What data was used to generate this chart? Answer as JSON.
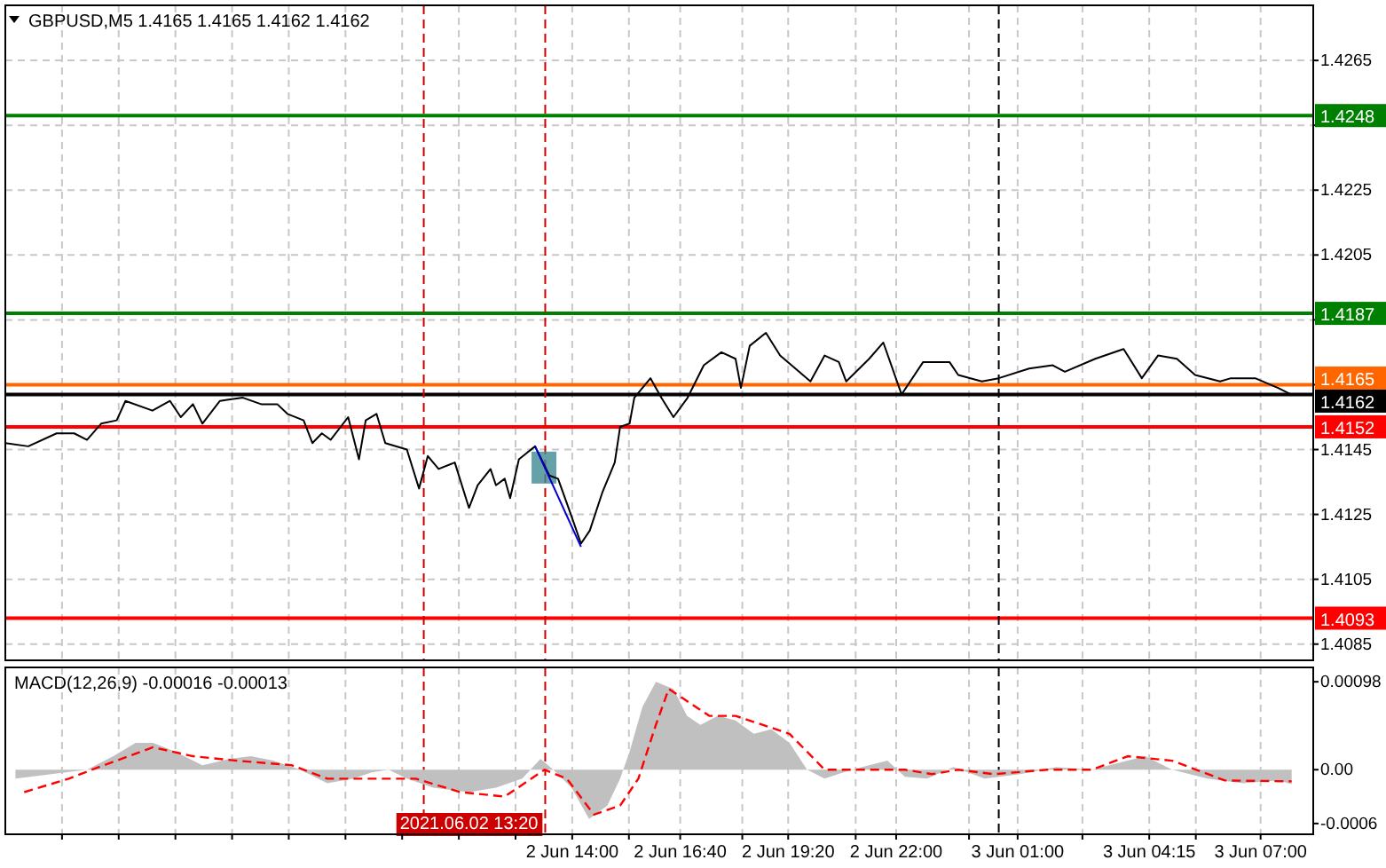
{
  "chart_data": [
    {
      "type": "line",
      "title": "GBPUSD,M5 1.4165 1.4165 1.4162 1.4162",
      "xlim": [
        "2021-06-02T00:00",
        "2021-06-03T08:18"
      ],
      "ylim": [
        1.408,
        1.4282
      ],
      "xticks": [
        {
          "value": "2021-06-02T01:24",
          "label": null
        },
        {
          "value": "2021-06-02T02:48",
          "label": null
        },
        {
          "value": "2021-06-02T04:12",
          "label": null
        },
        {
          "value": "2021-06-02T05:36",
          "label": null
        },
        {
          "value": "2021-06-02T07:00",
          "label": null
        },
        {
          "value": "2021-06-02T08:24",
          "label": null
        },
        {
          "value": "2021-06-02T09:48",
          "label": null
        },
        {
          "value": "2021-06-02T11:12",
          "label": null
        },
        {
          "value": "2021-06-02T12:36",
          "label": null
        },
        {
          "value": "2021-06-02T14:00",
          "label": null
        },
        {
          "value": "2021-06-02T15:24",
          "label": null
        },
        {
          "value": "2021-06-02T16:40",
          "label": null
        },
        {
          "value": "2021-06-02T18:12",
          "label": null
        },
        {
          "value": "2021-06-02T19:20",
          "label": null
        },
        {
          "value": "2021-06-02T21:00",
          "label": null
        },
        {
          "value": "2021-06-02T22:00",
          "label": null
        },
        {
          "value": "2021-06-02T23:48",
          "label": null
        },
        {
          "value": "2021-06-03T01:00",
          "label": null
        },
        {
          "value": "2021-06-03T02:36",
          "label": null
        },
        {
          "value": "2021-06-03T04:15",
          "label": null
        },
        {
          "value": "2021-06-03T05:24",
          "label": null
        },
        {
          "value": "2021-06-03T07:00",
          "label": null
        }
      ],
      "yticks": [
        1.4265,
        {
          "value": 1.4245,
          "label": null
        },
        1.4225,
        1.4205,
        {
          "value": 1.4185,
          "label": null
        },
        {
          "value": 1.4165,
          "label": null
        },
        1.4145,
        1.4125,
        1.4105,
        1.4085
      ],
      "grid": true,
      "tick_labels": "y",
      "series": [
        {
          "color": "#000000",
          "x": [
            "2021-06-02T00:00",
            "2021-06-02T00:34",
            "2021-06-02T01:16",
            "2021-06-02T01:42",
            "2021-06-02T02:01",
            "2021-06-02T02:22",
            "2021-06-02T02:45",
            "2021-06-02T02:58",
            "2021-06-02T03:38",
            "2021-06-02T04:04",
            "2021-06-02T04:20",
            "2021-06-02T04:38",
            "2021-06-02T04:52",
            "2021-06-02T05:18",
            "2021-06-02T05:52",
            "2021-06-02T06:19",
            "2021-06-02T06:43",
            "2021-06-02T06:58",
            "2021-06-02T07:22",
            "2021-06-02T07:35",
            "2021-06-02T07:49",
            "2021-06-02T08:02",
            "2021-06-02T08:28",
            "2021-06-02T08:44",
            "2021-06-02T08:54",
            "2021-06-02T09:10",
            "2021-06-02T09:23",
            "2021-06-02T09:55",
            "2021-06-02T10:13",
            "2021-06-02T10:26",
            "2021-06-02T10:42",
            "2021-06-02T11:06",
            "2021-06-02T11:27",
            "2021-06-02T11:40",
            "2021-06-02T11:59",
            "2021-06-02T12:07",
            "2021-06-02T12:20",
            "2021-06-02T12:28",
            "2021-06-02T12:41",
            "2021-06-02T13:05",
            "2021-06-02T13:26",
            "2021-06-02T13:39",
            "2021-06-02T13:58",
            "2021-06-02T14:13",
            "2021-06-02T14:26",
            "2021-06-02T14:45",
            "2021-06-02T15:03",
            "2021-06-02T15:11",
            "2021-06-02T15:25",
            "2021-06-02T15:32",
            "2021-06-02T15:56",
            "2021-06-02T16:12",
            "2021-06-02T16:30",
            "2021-06-02T16:51",
            "2021-06-02T17:15",
            "2021-06-02T17:41",
            "2021-06-02T18:02",
            "2021-06-02T18:10",
            "2021-06-02T18:23",
            "2021-06-02T18:47",
            "2021-06-02T19:08",
            "2021-06-02T19:53",
            "2021-06-02T20:14",
            "2021-06-02T20:35",
            "2021-06-02T20:46",
            "2021-06-02T21:20",
            "2021-06-02T21:41",
            "2021-06-02T22:08",
            "2021-06-02T22:40",
            "2021-06-02T23:19",
            "2021-06-02T23:32",
            "2021-06-03T00:07",
            "2021-06-03T00:32",
            "2021-06-03T01:17",
            "2021-06-03T01:52",
            "2021-06-03T02:10",
            "2021-06-03T02:55",
            "2021-06-03T03:37",
            "2021-06-03T04:04",
            "2021-06-03T04:28",
            "2021-06-03T04:56",
            "2021-06-03T05:23",
            "2021-06-03T06:00",
            "2021-06-03T06:16",
            "2021-06-03T06:52",
            "2021-06-03T07:26",
            "2021-06-03T07:45"
          ],
          "values": [
            1.4147,
            1.4146,
            1.415,
            1.415,
            1.4148,
            1.4153,
            1.4154,
            1.416,
            1.4157,
            1.416,
            1.4155,
            1.4159,
            1.4153,
            1.416,
            1.4161,
            1.4159,
            1.4159,
            1.4156,
            1.4154,
            1.4147,
            1.415,
            1.4148,
            1.4155,
            1.4142,
            1.4154,
            1.4156,
            1.4147,
            1.4145,
            1.4133,
            1.4143,
            1.4139,
            1.4141,
            1.4127,
            1.4134,
            1.4139,
            1.4134,
            1.4136,
            1.413,
            1.4142,
            1.4146,
            1.4137,
            1.4136,
            1.4125,
            1.4116,
            1.412,
            1.4132,
            1.4141,
            1.4152,
            1.4153,
            1.4161,
            1.4167,
            1.4161,
            1.4155,
            1.4161,
            1.4171,
            1.4175,
            1.4173,
            1.4164,
            1.4177,
            1.4181,
            1.4174,
            1.4166,
            1.4174,
            1.4172,
            1.4166,
            1.4173,
            1.4178,
            1.4162,
            1.4172,
            1.4172,
            1.4168,
            1.4166,
            1.4167,
            1.417,
            1.4171,
            1.4169,
            1.4173,
            1.4176,
            1.4167,
            1.4174,
            1.4173,
            1.4168,
            1.4166,
            1.4167,
            1.4167,
            1.4164,
            1.4162
          ]
        },
        {
          "color": "#0000cc",
          "x": [
            "2021-06-02T13:05",
            "2021-06-02T14:13"
          ],
          "values": [
            1.4146,
            1.4115
          ]
        }
      ],
      "ref_lines": [
        {
          "axis": "y",
          "value": 1.4248,
          "label": "1.4248",
          "color": "#008000"
        },
        {
          "axis": "y",
          "value": 1.4187,
          "label": "1.4187",
          "color": "#008000"
        },
        {
          "axis": "y",
          "value": 1.4165,
          "label": "1.4165",
          "color": "#ff6600"
        },
        {
          "axis": "y",
          "value": 1.4162,
          "label": "1.4162",
          "color": "#000000"
        },
        {
          "axis": "y",
          "value": 1.4152,
          "label": "1.4152",
          "color": "#ff0000"
        },
        {
          "axis": "y",
          "value": 1.4093,
          "label": "1.4093",
          "color": "#ff0000"
        },
        {
          "axis": "x",
          "value": "2021-06-02T10:20",
          "color": "#cc0000",
          "line_style": "dashed"
        },
        {
          "axis": "x",
          "value": "2021-06-02T13:20",
          "color": "#cc0000",
          "line_style": "dashed"
        },
        {
          "axis": "x",
          "value": "2021-06-03T00:32",
          "color": "#000000",
          "line_style": "dashed"
        }
      ]
    },
    {
      "type": "line",
      "title": "MACD(12,26,9) -0.00016 -0.00013",
      "xlim": [
        "2021-06-02T00:00",
        "2021-06-03T08:18"
      ],
      "ylim": [
        -0.00072,
        0.00114
      ],
      "xticks": [
        {
          "value": "2021-06-02T01:24",
          "label": null
        },
        {
          "value": "2021-06-02T02:48",
          "label": null
        },
        {
          "value": "2021-06-02T04:12",
          "label": null
        },
        {
          "value": "2021-06-02T05:36",
          "label": null
        },
        {
          "value": "2021-06-02T07:00",
          "label": null
        },
        {
          "value": "2021-06-02T08:24",
          "label": null
        },
        {
          "value": "2021-06-02T09:48",
          "label": null
        },
        {
          "value": "2021-06-02T11:12",
          "label": null
        },
        {
          "value": "2021-06-02T12:36",
          "label": null
        },
        {
          "value": "2021-06-02T14:00",
          "label": "2 Jun 14:00"
        },
        {
          "value": "2021-06-02T15:24",
          "label": null
        },
        {
          "value": "2021-06-02T16:40",
          "label": "2 Jun 16:40"
        },
        {
          "value": "2021-06-02T18:12",
          "label": null
        },
        {
          "value": "2021-06-02T19:20",
          "label": "2 Jun 19:20"
        },
        {
          "value": "2021-06-02T21:00",
          "label": null
        },
        {
          "value": "2021-06-02T22:00",
          "label": "2 Jun 22:00"
        },
        {
          "value": "2021-06-02T23:48",
          "label": null
        },
        {
          "value": "2021-06-03T01:00",
          "label": "3 Jun 01:00"
        },
        {
          "value": "2021-06-03T02:36",
          "label": null
        },
        {
          "value": "2021-06-03T04:15",
          "label": "3 Jun 04:15"
        },
        {
          "value": "2021-06-03T05:24",
          "label": null
        },
        {
          "value": "2021-06-03T07:00",
          "label": "3 Jun 07:00"
        }
      ],
      "yticks": [
        0.00098,
        {
          "value": 0,
          "label": "0.00"
        },
        -0.0006
      ],
      "grid": "x",
      "series": [
        {
          "type": "area",
          "color": "#c0c0c0",
          "x": [
            "2021-06-02T00:15",
            "2021-06-02T01:08",
            "2021-06-02T02:01",
            "2021-06-02T02:40",
            "2021-06-02T03:13",
            "2021-06-02T03:39",
            "2021-06-02T04:12",
            "2021-06-02T04:52",
            "2021-06-02T05:32",
            "2021-06-02T06:04",
            "2021-06-02T06:37",
            "2021-06-02T07:17",
            "2021-06-02T07:57",
            "2021-06-02T08:36",
            "2021-06-02T09:03",
            "2021-06-02T09:28",
            "2021-06-02T09:55",
            "2021-06-02T10:34",
            "2021-06-02T11:27",
            "2021-06-02T12:07",
            "2021-06-02T12:46",
            "2021-06-02T13:13",
            "2021-06-02T13:32",
            "2021-06-02T13:59",
            "2021-06-02T14:25",
            "2021-06-02T14:52",
            "2021-06-02T15:11",
            "2021-06-02T15:25",
            "2021-06-02T15:44",
            "2021-06-02T16:04",
            "2021-06-02T16:30",
            "2021-06-02T16:50",
            "2021-06-02T17:10",
            "2021-06-02T17:36",
            "2021-06-02T18:02",
            "2021-06-02T18:29",
            "2021-06-02T18:55",
            "2021-06-02T19:22",
            "2021-06-02T19:48",
            "2021-06-02T20:14",
            "2021-06-02T20:54",
            "2021-06-02T21:47",
            "2021-06-02T22:13",
            "2021-06-02T22:46",
            "2021-06-02T23:25",
            "2021-06-03T00:11",
            "2021-06-03T01:04",
            "2021-06-03T01:57",
            "2021-06-03T02:50",
            "2021-06-03T03:43",
            "2021-06-03T04:09",
            "2021-06-03T04:49",
            "2021-06-03T05:41",
            "2021-06-03T06:34",
            "2021-06-03T07:26",
            "2021-06-03T07:46"
          ],
          "values": [
            -0.0001,
            -5e-05,
            0,
            0.00015,
            0.0003,
            0.0003,
            0.0002,
            5e-05,
            0.00012,
            0.00015,
            0.0001,
            0,
            -0.00015,
            -0.0001,
            -3e-05,
            0,
            -0.0001,
            -0.0002,
            -0.00025,
            -0.0002,
            -0.0001,
            0.00012,
            0,
            -0.0002,
            -0.00055,
            -0.0004,
            -0.0001,
            0.0002,
            0.0007,
            0.00098,
            0.0009,
            0.0006,
            0.0005,
            0.0006,
            0.00055,
            0.0004,
            0.00045,
            0.0003,
            0,
            -0.0001,
            0,
            0.0001,
            -8e-05,
            -0.0001,
            3e-05,
            -0.0001,
            -5e-05,
            3e-05,
            0,
            0.0001,
            0.00015,
            0,
            -0.0001,
            -0.00015,
            -0.00012,
            -0.00016
          ]
        },
        {
          "color": "#ff0000",
          "line_style": "dashed",
          "x": [
            "2021-06-02T00:28",
            "2021-06-02T01:34",
            "2021-06-02T02:26",
            "2021-06-02T03:39",
            "2021-06-02T04:38",
            "2021-06-02T05:44",
            "2021-06-02T07:04",
            "2021-06-02T07:57",
            "2021-06-02T09:03",
            "2021-06-02T10:08",
            "2021-06-02T11:14",
            "2021-06-02T12:20",
            "2021-06-02T13:19",
            "2021-06-02T13:52",
            "2021-06-02T14:32",
            "2021-06-02T15:11",
            "2021-06-02T15:38",
            "2021-06-02T16:04",
            "2021-06-02T16:23",
            "2021-06-02T16:43",
            "2021-06-02T17:23",
            "2021-06-02T18:02",
            "2021-06-02T18:42",
            "2021-06-02T19:22",
            "2021-06-02T20:14",
            "2021-06-02T21:20",
            "2021-06-02T22:13",
            "2021-06-02T22:53",
            "2021-06-02T23:32",
            "2021-06-03T00:25",
            "2021-06-03T01:44",
            "2021-06-03T02:50",
            "2021-06-03T03:43",
            "2021-06-03T04:49",
            "2021-06-03T06:07",
            "2021-06-03T07:46"
          ],
          "values": [
            -0.00025,
            -0.0001,
            5e-05,
            0.00025,
            0.00015,
            0.0001,
            5e-05,
            -0.0001,
            -0.0001,
            -0.0001,
            -0.00025,
            -0.0003,
            0,
            -0.0001,
            -0.0005,
            -0.0004,
            -0.0001,
            0.0005,
            0.0009,
            0.0008,
            0.0006,
            0.0006,
            0.0005,
            0.0004,
            0,
            0,
            0,
            -5e-05,
            0,
            -5e-05,
            0,
            0,
            0.00015,
            0.0001,
            -0.00012,
            -0.00013
          ]
        }
      ],
      "ref_lines": [
        {
          "axis": "x",
          "value": "2021-06-02T10:20",
          "color": "#cc0000",
          "line_style": "dashed"
        },
        {
          "axis": "x",
          "value": "2021-06-02T13:20",
          "label": "2021.06.02 13:20",
          "color": "#cc0000",
          "line_style": "dashed"
        },
        {
          "axis": "x",
          "value": "2021-06-03T00:32",
          "color": "#000000",
          "line_style": "dashed"
        }
      ]
    }
  ]
}
